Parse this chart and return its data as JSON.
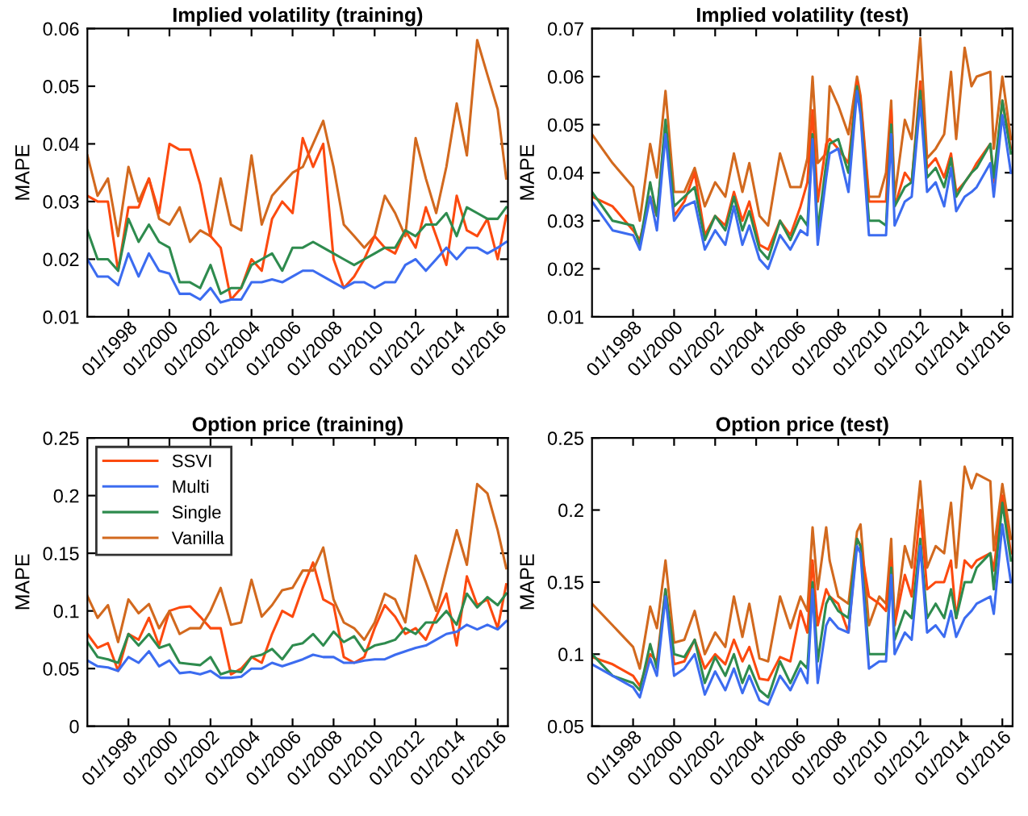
{
  "chart_data": [
    {
      "type": "line",
      "title": "Implied volatility (training)",
      "ylabel": "MAPE",
      "grid": false,
      "legend": false,
      "xlim": [
        "1996-01",
        "2016-07"
      ],
      "ylim": [
        0.01,
        0.06
      ],
      "yticks": [
        0.01,
        0.02,
        0.03,
        0.04,
        0.05,
        0.06
      ],
      "xticks": [
        {
          "value": "1998-01",
          "label": "01/1998"
        },
        {
          "value": "2000-01",
          "label": "01/2000"
        },
        {
          "value": "2002-01",
          "label": "01/2002"
        },
        {
          "value": "2004-01",
          "label": "01/2004"
        },
        {
          "value": "2006-01",
          "label": "01/2006"
        },
        {
          "value": "2008-01",
          "label": "01/2008"
        },
        {
          "value": "2010-01",
          "label": "01/2010"
        },
        {
          "value": "2012-01",
          "label": "01/2012"
        },
        {
          "value": "2014-01",
          "label": "01/2014"
        },
        {
          "value": "2016-01",
          "label": "01/2016"
        }
      ],
      "x": [
        "1996-01",
        "1996-07",
        "1997-01",
        "1997-07",
        "1998-01",
        "1998-07",
        "1999-01",
        "1999-07",
        "2000-01",
        "2000-07",
        "2001-01",
        "2001-07",
        "2002-01",
        "2002-07",
        "2003-01",
        "2003-07",
        "2004-01",
        "2004-07",
        "2005-01",
        "2005-07",
        "2006-01",
        "2006-07",
        "2007-01",
        "2007-07",
        "2008-01",
        "2008-07",
        "2009-01",
        "2009-07",
        "2010-01",
        "2010-07",
        "2011-01",
        "2011-07",
        "2012-01",
        "2012-07",
        "2013-01",
        "2013-07",
        "2014-01",
        "2014-07",
        "2015-01",
        "2015-07",
        "2016-01",
        "2016-06"
      ],
      "series": [
        {
          "color": "#d2691e",
          "values": [
            0.038,
            0.031,
            0.034,
            0.024,
            0.036,
            0.03,
            0.034,
            0.027,
            0.026,
            0.029,
            0.023,
            0.025,
            0.024,
            0.034,
            0.026,
            0.025,
            0.038,
            0.026,
            0.031,
            0.033,
            0.035,
            0.036,
            0.04,
            0.044,
            0.036,
            0.026,
            0.024,
            0.022,
            0.024,
            0.031,
            0.028,
            0.024,
            0.041,
            0.034,
            0.028,
            0.036,
            0.047,
            0.038,
            0.058,
            0.052,
            0.046,
            0.034
          ]
        },
        {
          "color": "#fc4a0f",
          "values": [
            0.031,
            0.03,
            0.03,
            0.018,
            0.029,
            0.029,
            0.034,
            0.028,
            0.04,
            0.039,
            0.039,
            0.033,
            0.024,
            0.022,
            0.013,
            0.015,
            0.02,
            0.018,
            0.027,
            0.03,
            0.028,
            0.041,
            0.036,
            0.04,
            0.02,
            0.015,
            0.017,
            0.02,
            0.024,
            0.022,
            0.021,
            0.025,
            0.022,
            0.029,
            0.024,
            0.019,
            0.031,
            0.025,
            0.024,
            0.027,
            0.02,
            0.0275
          ]
        },
        {
          "color": "#2e8b4e",
          "values": [
            0.025,
            0.02,
            0.02,
            0.018,
            0.027,
            0.023,
            0.026,
            0.023,
            0.022,
            0.016,
            0.016,
            0.015,
            0.019,
            0.014,
            0.015,
            0.015,
            0.019,
            0.02,
            0.021,
            0.018,
            0.022,
            0.022,
            0.023,
            0.022,
            0.021,
            0.02,
            0.019,
            0.02,
            0.021,
            0.022,
            0.022,
            0.025,
            0.024,
            0.026,
            0.026,
            0.028,
            0.024,
            0.029,
            0.028,
            0.027,
            0.027,
            0.029
          ]
        },
        {
          "color": "#3c6cf0",
          "values": [
            0.02,
            0.017,
            0.017,
            0.0155,
            0.021,
            0.017,
            0.021,
            0.018,
            0.0175,
            0.014,
            0.014,
            0.013,
            0.015,
            0.0125,
            0.013,
            0.013,
            0.016,
            0.016,
            0.0165,
            0.016,
            0.017,
            0.018,
            0.018,
            0.017,
            0.016,
            0.015,
            0.016,
            0.016,
            0.015,
            0.016,
            0.016,
            0.019,
            0.02,
            0.018,
            0.02,
            0.022,
            0.02,
            0.022,
            0.022,
            0.021,
            0.022,
            0.023
          ]
        }
      ]
    },
    {
      "type": "line",
      "title": "Implied volatility (test)",
      "ylabel": "MAPE",
      "grid": false,
      "legend": false,
      "xlim": [
        "1996-01",
        "2016-07"
      ],
      "ylim": [
        0.01,
        0.07
      ],
      "yticks": [
        0.01,
        0.02,
        0.03,
        0.04,
        0.05,
        0.06,
        0.07
      ],
      "xticks": [
        {
          "value": "1998-01",
          "label": "01/1998"
        },
        {
          "value": "2000-01",
          "label": "01/2000"
        },
        {
          "value": "2002-01",
          "label": "01/2002"
        },
        {
          "value": "2004-01",
          "label": "01/2004"
        },
        {
          "value": "2006-01",
          "label": "01/2006"
        },
        {
          "value": "2008-01",
          "label": "01/2008"
        },
        {
          "value": "2010-01",
          "label": "01/2010"
        },
        {
          "value": "2012-01",
          "label": "01/2012"
        },
        {
          "value": "2014-01",
          "label": "01/2014"
        },
        {
          "value": "2016-01",
          "label": "01/2016"
        }
      ],
      "x": [
        "1996-01",
        "1997-01",
        "1998-01",
        "1998-05",
        "1998-11",
        "1999-03",
        "1999-08",
        "2000-01",
        "2000-07",
        "2001-01",
        "2001-07",
        "2002-01",
        "2002-07",
        "2002-12",
        "2003-05",
        "2003-09",
        "2004-03",
        "2004-08",
        "2005-03",
        "2005-09",
        "2006-03",
        "2006-07",
        "2006-10",
        "2007-01",
        "2007-06",
        "2007-08",
        "2008-01",
        "2008-07",
        "2008-12",
        "2009-02",
        "2009-07",
        "2010-01",
        "2010-05",
        "2010-08",
        "2010-10",
        "2011-04",
        "2011-08",
        "2012-01",
        "2012-05",
        "2012-10",
        "2013-03",
        "2013-07",
        "2013-10",
        "2014-03",
        "2014-07",
        "2014-10",
        "2015-06",
        "2015-08",
        "2016-01",
        "2016-06"
      ],
      "series": [
        {
          "color": "#d2691e",
          "values": [
            0.048,
            0.042,
            0.037,
            0.03,
            0.046,
            0.039,
            0.057,
            0.036,
            0.036,
            0.041,
            0.033,
            0.038,
            0.035,
            0.044,
            0.036,
            0.042,
            0.031,
            0.029,
            0.044,
            0.037,
            0.037,
            0.043,
            0.06,
            0.042,
            0.044,
            0.058,
            0.054,
            0.048,
            0.06,
            0.056,
            0.035,
            0.035,
            0.04,
            0.055,
            0.035,
            0.051,
            0.047,
            0.068,
            0.043,
            0.045,
            0.048,
            0.061,
            0.047,
            0.066,
            0.058,
            0.06,
            0.061,
            0.045,
            0.06,
            0.047
          ]
        },
        {
          "color": "#fc4a0f",
          "values": [
            0.035,
            0.033,
            0.028,
            0.026,
            0.035,
            0.031,
            0.05,
            0.031,
            0.034,
            0.04,
            0.027,
            0.031,
            0.029,
            0.036,
            0.03,
            0.034,
            0.025,
            0.024,
            0.03,
            0.027,
            0.033,
            0.038,
            0.053,
            0.034,
            0.046,
            0.047,
            0.045,
            0.042,
            0.059,
            0.055,
            0.034,
            0.034,
            0.034,
            0.053,
            0.033,
            0.04,
            0.038,
            0.059,
            0.041,
            0.043,
            0.039,
            0.044,
            0.036,
            0.038,
            0.04,
            0.042,
            0.046,
            0.038,
            0.055,
            0.045
          ]
        },
        {
          "color": "#2e8b4e",
          "values": [
            0.036,
            0.03,
            0.029,
            0.025,
            0.038,
            0.031,
            0.051,
            0.033,
            0.035,
            0.037,
            0.026,
            0.031,
            0.028,
            0.035,
            0.028,
            0.032,
            0.024,
            0.022,
            0.03,
            0.026,
            0.031,
            0.029,
            0.048,
            0.028,
            0.042,
            0.046,
            0.047,
            0.04,
            0.058,
            0.053,
            0.03,
            0.03,
            0.029,
            0.05,
            0.033,
            0.037,
            0.038,
            0.057,
            0.039,
            0.041,
            0.037,
            0.043,
            0.035,
            0.038,
            0.04,
            0.041,
            0.046,
            0.039,
            0.055,
            0.044
          ]
        },
        {
          "color": "#3c6cf0",
          "values": [
            0.034,
            0.028,
            0.027,
            0.024,
            0.035,
            0.028,
            0.048,
            0.03,
            0.033,
            0.034,
            0.024,
            0.028,
            0.025,
            0.033,
            0.025,
            0.029,
            0.022,
            0.02,
            0.027,
            0.024,
            0.028,
            0.027,
            0.047,
            0.025,
            0.039,
            0.044,
            0.045,
            0.036,
            0.057,
            0.052,
            0.027,
            0.027,
            0.027,
            0.048,
            0.029,
            0.034,
            0.035,
            0.055,
            0.036,
            0.038,
            0.033,
            0.041,
            0.032,
            0.035,
            0.036,
            0.037,
            0.042,
            0.035,
            0.052,
            0.04
          ]
        }
      ]
    },
    {
      "type": "line",
      "title": "Option price (training)",
      "ylabel": "MAPE",
      "grid": false,
      "legend": "top left",
      "xlim": [
        "1996-01",
        "2016-07"
      ],
      "ylim": [
        0,
        0.25
      ],
      "yticks": [
        0,
        0.05,
        0.1,
        0.15,
        0.2,
        0.25
      ],
      "xticks": [
        {
          "value": "1998-01",
          "label": "01/1998"
        },
        {
          "value": "2000-01",
          "label": "01/2000"
        },
        {
          "value": "2002-01",
          "label": "01/2002"
        },
        {
          "value": "2004-01",
          "label": "01/2004"
        },
        {
          "value": "2006-01",
          "label": "01/2006"
        },
        {
          "value": "2008-01",
          "label": "01/2008"
        },
        {
          "value": "2010-01",
          "label": "01/2010"
        },
        {
          "value": "2012-01",
          "label": "01/2012"
        },
        {
          "value": "2014-01",
          "label": "01/2014"
        },
        {
          "value": "2016-01",
          "label": "01/2016"
        }
      ],
      "x": [
        "1996-01",
        "1996-07",
        "1997-01",
        "1997-07",
        "1998-01",
        "1998-07",
        "1999-01",
        "1999-07",
        "2000-01",
        "2000-07",
        "2001-01",
        "2001-07",
        "2002-01",
        "2002-07",
        "2003-01",
        "2003-07",
        "2004-01",
        "2004-07",
        "2005-01",
        "2005-07",
        "2006-01",
        "2006-07",
        "2007-01",
        "2007-07",
        "2008-01",
        "2008-07",
        "2009-01",
        "2009-07",
        "2010-01",
        "2010-07",
        "2011-01",
        "2011-07",
        "2012-01",
        "2012-07",
        "2013-01",
        "2013-07",
        "2014-01",
        "2014-07",
        "2015-01",
        "2015-07",
        "2016-01",
        "2016-06"
      ],
      "series": [
        {
          "name": "SSVI",
          "color": "#fc4a0f",
          "values": [
            0.08,
            0.068,
            0.072,
            0.048,
            0.08,
            0.075,
            0.094,
            0.07,
            0.1,
            0.103,
            0.104,
            0.095,
            0.085,
            0.085,
            0.045,
            0.05,
            0.06,
            0.055,
            0.08,
            0.1,
            0.095,
            0.12,
            0.142,
            0.11,
            0.105,
            0.06,
            0.055,
            0.06,
            0.085,
            0.105,
            0.095,
            0.08,
            0.085,
            0.075,
            0.095,
            0.115,
            0.07,
            0.13,
            0.105,
            0.11,
            0.085,
            0.123
          ]
        },
        {
          "name": "Multi",
          "color": "#3c6cf0",
          "values": [
            0.057,
            0.052,
            0.051,
            0.048,
            0.06,
            0.055,
            0.065,
            0.052,
            0.057,
            0.046,
            0.047,
            0.045,
            0.048,
            0.042,
            0.042,
            0.043,
            0.05,
            0.05,
            0.055,
            0.052,
            0.055,
            0.058,
            0.062,
            0.06,
            0.06,
            0.055,
            0.055,
            0.057,
            0.058,
            0.058,
            0.062,
            0.065,
            0.068,
            0.07,
            0.075,
            0.08,
            0.082,
            0.088,
            0.084,
            0.088,
            0.084,
            0.091
          ]
        },
        {
          "name": "Single",
          "color": "#2e8b4e",
          "values": [
            0.073,
            0.06,
            0.058,
            0.055,
            0.08,
            0.07,
            0.08,
            0.068,
            0.071,
            0.055,
            0.054,
            0.053,
            0.06,
            0.045,
            0.048,
            0.047,
            0.06,
            0.062,
            0.067,
            0.058,
            0.07,
            0.072,
            0.08,
            0.07,
            0.082,
            0.073,
            0.078,
            0.065,
            0.07,
            0.072,
            0.075,
            0.085,
            0.08,
            0.09,
            0.09,
            0.1,
            0.088,
            0.115,
            0.103,
            0.112,
            0.105,
            0.115
          ]
        },
        {
          "name": "Vanilla",
          "color": "#d2691e",
          "values": [
            0.113,
            0.094,
            0.105,
            0.073,
            0.11,
            0.098,
            0.106,
            0.085,
            0.1,
            0.08,
            0.085,
            0.085,
            0.1,
            0.12,
            0.088,
            0.09,
            0.127,
            0.095,
            0.105,
            0.118,
            0.12,
            0.135,
            0.135,
            0.155,
            0.11,
            0.09,
            0.085,
            0.075,
            0.09,
            0.115,
            0.11,
            0.09,
            0.148,
            0.125,
            0.1,
            0.135,
            0.17,
            0.14,
            0.21,
            0.202,
            0.17,
            0.137
          ]
        }
      ]
    },
    {
      "type": "line",
      "title": "Option price (test)",
      "ylabel": "MAPE",
      "grid": false,
      "legend": false,
      "xlim": [
        "1996-01",
        "2016-07"
      ],
      "ylim": [
        0.05,
        0.25
      ],
      "yticks": [
        0.05,
        0.1,
        0.15,
        0.2,
        0.25
      ],
      "xticks": [
        {
          "value": "1998-01",
          "label": "01/1998"
        },
        {
          "value": "2000-01",
          "label": "01/2000"
        },
        {
          "value": "2002-01",
          "label": "01/2002"
        },
        {
          "value": "2004-01",
          "label": "01/2004"
        },
        {
          "value": "2006-01",
          "label": "01/2006"
        },
        {
          "value": "2008-01",
          "label": "01/2008"
        },
        {
          "value": "2010-01",
          "label": "01/2010"
        },
        {
          "value": "2012-01",
          "label": "01/2012"
        },
        {
          "value": "2014-01",
          "label": "01/2014"
        },
        {
          "value": "2016-01",
          "label": "01/2016"
        }
      ],
      "x": [
        "1996-01",
        "1997-01",
        "1998-01",
        "1998-05",
        "1998-11",
        "1999-03",
        "1999-08",
        "2000-01",
        "2000-07",
        "2001-01",
        "2001-07",
        "2002-01",
        "2002-07",
        "2002-12",
        "2003-05",
        "2003-09",
        "2004-03",
        "2004-08",
        "2005-03",
        "2005-09",
        "2006-03",
        "2006-07",
        "2006-10",
        "2007-01",
        "2007-06",
        "2007-08",
        "2008-01",
        "2008-07",
        "2008-12",
        "2009-02",
        "2009-07",
        "2010-01",
        "2010-05",
        "2010-08",
        "2010-10",
        "2011-04",
        "2011-08",
        "2012-01",
        "2012-05",
        "2012-10",
        "2013-03",
        "2013-07",
        "2013-10",
        "2014-03",
        "2014-07",
        "2014-10",
        "2015-06",
        "2015-08",
        "2016-01",
        "2016-06"
      ],
      "series": [
        {
          "color": "#d2691e",
          "values": [
            0.135,
            0.12,
            0.105,
            0.09,
            0.133,
            0.118,
            0.165,
            0.108,
            0.11,
            0.13,
            0.1,
            0.115,
            0.105,
            0.14,
            0.112,
            0.135,
            0.097,
            0.095,
            0.14,
            0.118,
            0.14,
            0.13,
            0.188,
            0.145,
            0.188,
            0.165,
            0.14,
            0.135,
            0.185,
            0.19,
            0.12,
            0.14,
            0.135,
            0.18,
            0.12,
            0.175,
            0.16,
            0.22,
            0.16,
            0.175,
            0.17,
            0.205,
            0.16,
            0.23,
            0.215,
            0.225,
            0.22,
            0.172,
            0.218,
            0.18
          ]
        },
        {
          "color": "#fc4a0f",
          "values": [
            0.098,
            0.093,
            0.085,
            0.078,
            0.1,
            0.095,
            0.145,
            0.093,
            0.095,
            0.11,
            0.09,
            0.1,
            0.093,
            0.11,
            0.095,
            0.105,
            0.083,
            0.082,
            0.098,
            0.095,
            0.13,
            0.115,
            0.165,
            0.12,
            0.145,
            0.14,
            0.135,
            0.115,
            0.18,
            0.175,
            0.14,
            0.135,
            0.13,
            0.165,
            0.12,
            0.155,
            0.14,
            0.2,
            0.145,
            0.15,
            0.15,
            0.165,
            0.125,
            0.165,
            0.16,
            0.165,
            0.17,
            0.158,
            0.21,
            0.17
          ]
        },
        {
          "color": "#2e8b4e",
          "values": [
            0.1,
            0.085,
            0.08,
            0.075,
            0.107,
            0.09,
            0.145,
            0.1,
            0.098,
            0.11,
            0.08,
            0.098,
            0.085,
            0.1,
            0.08,
            0.092,
            0.075,
            0.07,
            0.095,
            0.08,
            0.095,
            0.09,
            0.15,
            0.095,
            0.135,
            0.14,
            0.13,
            0.125,
            0.18,
            0.175,
            0.1,
            0.1,
            0.1,
            0.16,
            0.11,
            0.13,
            0.125,
            0.18,
            0.125,
            0.135,
            0.125,
            0.145,
            0.125,
            0.15,
            0.15,
            0.16,
            0.17,
            0.145,
            0.205,
            0.165
          ]
        },
        {
          "color": "#3c6cf0",
          "values": [
            0.093,
            0.085,
            0.077,
            0.07,
            0.097,
            0.085,
            0.14,
            0.085,
            0.09,
            0.1,
            0.072,
            0.088,
            0.075,
            0.09,
            0.073,
            0.085,
            0.068,
            0.065,
            0.085,
            0.075,
            0.09,
            0.08,
            0.145,
            0.08,
            0.12,
            0.125,
            0.118,
            0.115,
            0.175,
            0.17,
            0.09,
            0.095,
            0.095,
            0.155,
            0.1,
            0.115,
            0.11,
            0.175,
            0.115,
            0.12,
            0.112,
            0.13,
            0.112,
            0.125,
            0.13,
            0.135,
            0.14,
            0.128,
            0.19,
            0.15
          ]
        }
      ]
    }
  ]
}
